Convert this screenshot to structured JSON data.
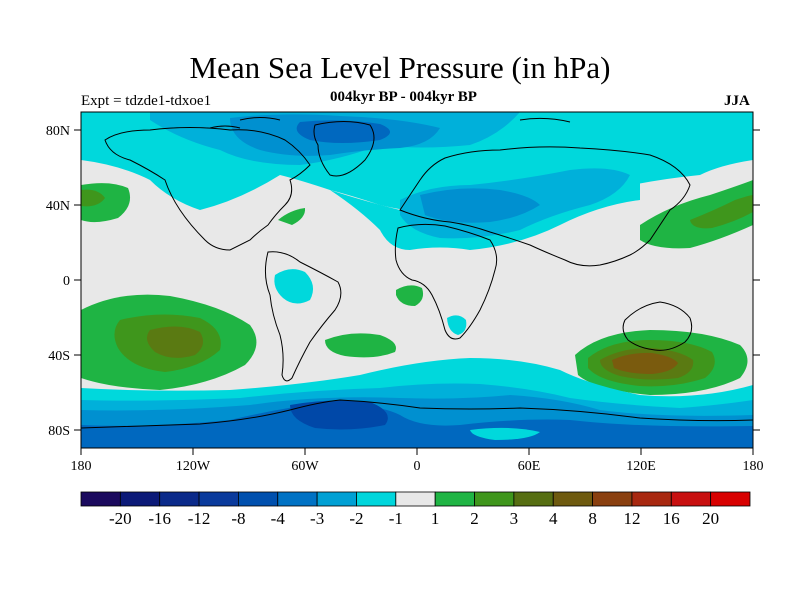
{
  "title": "Mean Sea Level Pressure (in hPa)",
  "experiment": "Expt = tdzde1-tdxoe1",
  "subtitle": "004kyr BP - 004kyr BP",
  "season": "JJA",
  "colors": {
    "land_outline": "#000000",
    "neutral": "#e8e8e8",
    "neg_1": "#00d8dc",
    "neg_2": "#00b0da",
    "neg_3": "#0090d0",
    "neg_4": "#0068bf",
    "neg_8": "#0048a8",
    "neg_12": "#003398",
    "pos_1": "#1fb444",
    "pos_2": "#3f961c",
    "pos_3": "#5a7a12",
    "pos_4": "#7a5b0e"
  },
  "chart_data": {
    "type": "heatmap",
    "variable": "Mean Sea Level Pressure difference",
    "units": "hPa",
    "x_ticks": [
      "180",
      "120W",
      "60W",
      "0",
      "60E",
      "120E",
      "180"
    ],
    "y_ticks": [
      "80N",
      "40N",
      "0",
      "40S",
      "80S"
    ],
    "x_range": [
      -180,
      180
    ],
    "y_range": [
      -90,
      90
    ],
    "colorbar": {
      "labels": [
        "-20",
        "-16",
        "-12",
        "-8",
        "-4",
        "-3",
        "-2",
        "-1",
        "1",
        "2",
        "3",
        "4",
        "8",
        "12",
        "16",
        "20"
      ],
      "colors": [
        "#1b0a5e",
        "#0c1a78",
        "#0b2a8a",
        "#0a3a9c",
        "#0050ae",
        "#0072c4",
        "#00a0d4",
        "#00d6dc",
        "#e8e8e8",
        "#1fb444",
        "#3f961c",
        "#566e12",
        "#6e5a0f",
        "#8a4010",
        "#a82810",
        "#c81010",
        "#d80000"
      ]
    }
  }
}
